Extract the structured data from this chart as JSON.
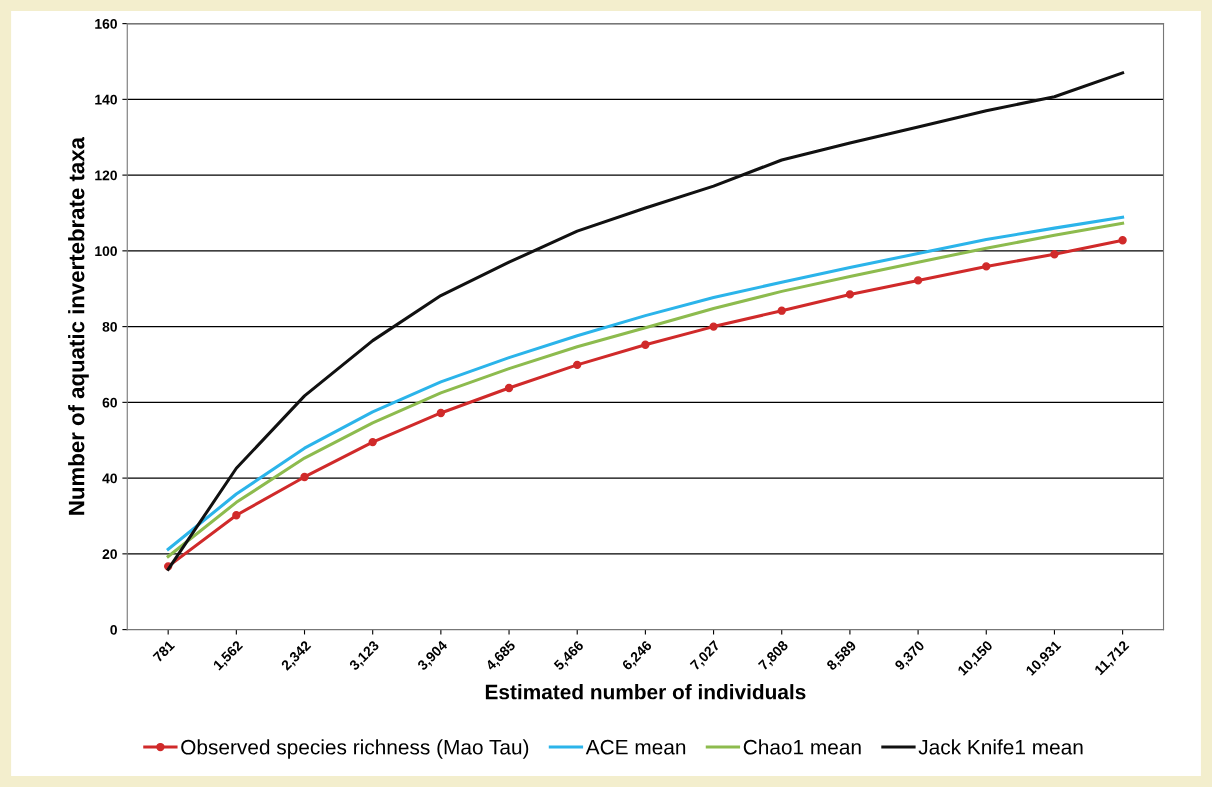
{
  "chart_data": {
    "type": "line",
    "xlabel": "Estimated number of individuals",
    "ylabel": "Number of aquatic invertebrate taxa",
    "categories": [
      "781",
      "1,562",
      "2,342",
      "3,123",
      "3,904",
      "4,685",
      "5,466",
      "6,246",
      "7,027",
      "7,808",
      "8,589",
      "9,370",
      "10,150",
      "10,931",
      "11,712"
    ],
    "series": [
      {
        "name": "Observed species richness (Mao Tau)",
        "color": "#d02a2a",
        "marker": "circle",
        "values": [
          16.7,
          30.2,
          40.3,
          49.5,
          57.2,
          63.8,
          69.9,
          75.2,
          80,
          84.2,
          88.5,
          92.2,
          95.9,
          99.1,
          102.8
        ]
      },
      {
        "name": "ACE mean",
        "color": "#2bb4ea",
        "values": [
          21.2,
          35.8,
          47.9,
          57.5,
          65.4,
          71.8,
          77.6,
          82.9,
          87.7,
          91.7,
          95.6,
          99.3,
          103,
          106,
          108.9
        ]
      },
      {
        "name": "Chao1 mean",
        "color": "#8dbb4e",
        "values": [
          19.3,
          33.6,
          45.3,
          54.6,
          62.5,
          68.9,
          74.7,
          79.7,
          84.8,
          89.3,
          93.2,
          97,
          100.7,
          104.1,
          107.3
        ]
      },
      {
        "name": "Jack Knife1 mean",
        "color": "#111111",
        "values": [
          15.9,
          42.6,
          61.7,
          76.3,
          88.2,
          97,
          105.2,
          111.3,
          117.1,
          124,
          128.5,
          132.7,
          137,
          140.7,
          147
        ]
      }
    ],
    "ylim": [
      0,
      160
    ],
    "yticks": [
      0,
      20,
      40,
      60,
      80,
      100,
      120,
      140,
      160
    ],
    "grid": "y",
    "legend": "bottom",
    "marker": "none",
    "line_style": "solid"
  }
}
